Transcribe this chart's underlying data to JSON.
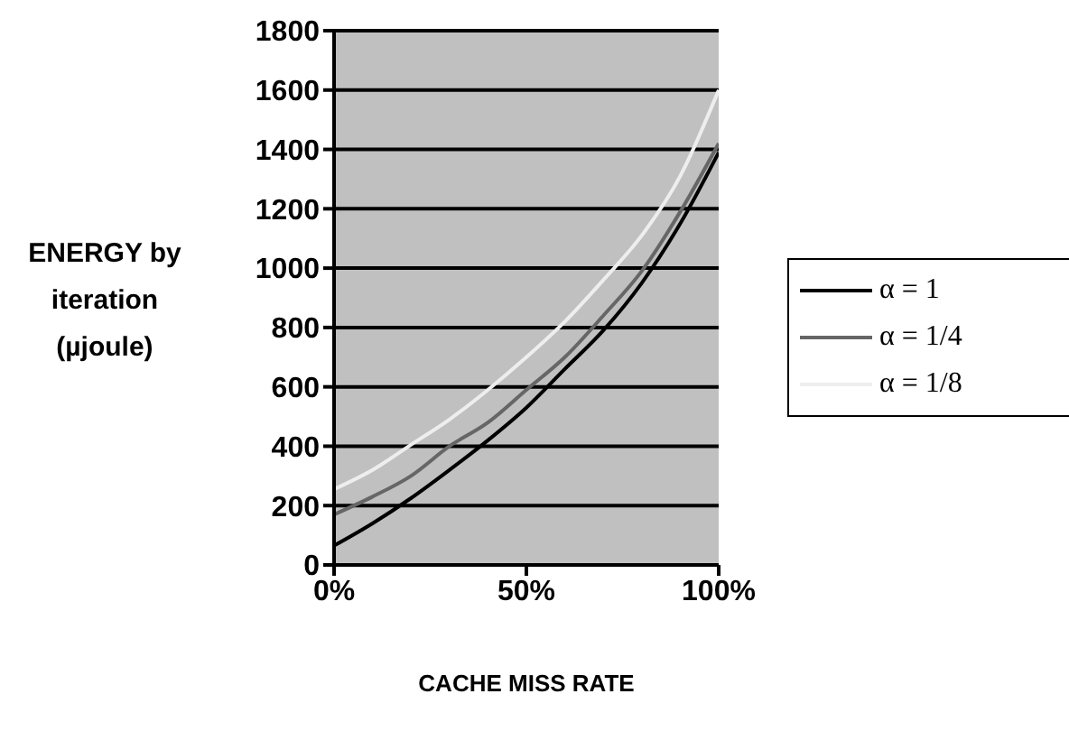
{
  "chart_data": {
    "type": "line",
    "xlabel": "CACHE MISS RATE",
    "ylabel": "ENERGY by iteration (µjoule)",
    "x": [
      0,
      10,
      20,
      30,
      40,
      50,
      60,
      70,
      80,
      90,
      100
    ],
    "series": [
      {
        "name": "α = 1",
        "color": "#000000",
        "values": [
          65,
          140,
          225,
          320,
          420,
          530,
          660,
          790,
          950,
          1150,
          1390
        ]
      },
      {
        "name": "α = 1/4",
        "color": "#666666",
        "values": [
          170,
          230,
          300,
          400,
          480,
          590,
          700,
          840,
          990,
          1190,
          1420
        ]
      },
      {
        "name": "α = 1/8",
        "color": "#eeeeee",
        "values": [
          255,
          320,
          405,
          490,
          590,
          700,
          820,
          960,
          1110,
          1310,
          1600
        ]
      }
    ],
    "xlim": [
      0,
      100
    ],
    "xticks": [
      {
        "value": 0,
        "label": "0%"
      },
      {
        "value": 50,
        "label": "50%"
      },
      {
        "value": 100,
        "label": "100%"
      }
    ],
    "ylim": [
      0,
      1800
    ],
    "yticks": [
      0,
      200,
      400,
      600,
      800,
      1000,
      1200,
      1400,
      1600,
      1800
    ],
    "grid": "y",
    "legend": "right",
    "marker": "none",
    "line_style": "solid"
  }
}
